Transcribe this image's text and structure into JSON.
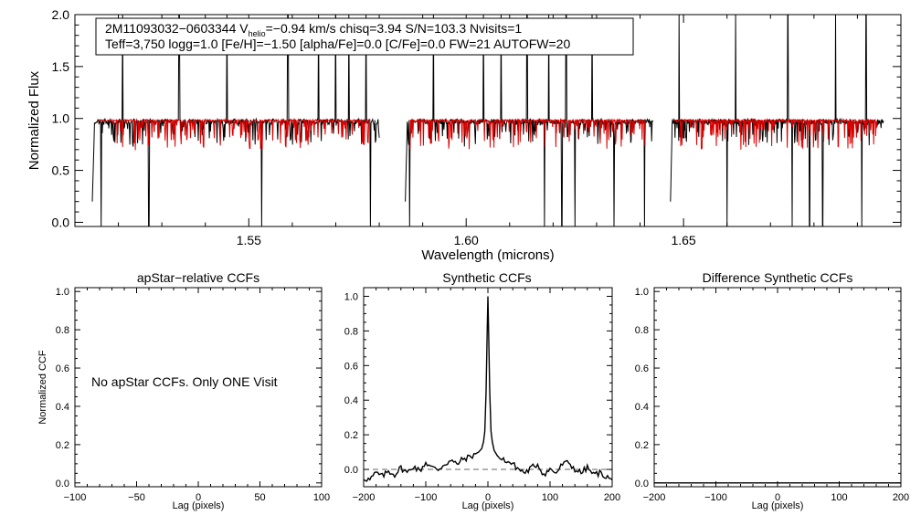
{
  "colors": {
    "observed": "#000000",
    "model": "#dd0000",
    "frame": "#000000",
    "zero_line": "#666666"
  },
  "spectrum_panel": {
    "info_line1_a": "2M11093032−0603344  V",
    "info_line1_sub": "helio",
    "info_line1_b": "=−0.94 km/s  chisq=3.94  S/N=103.3  Nvisits=1",
    "info_line2": "Teff=3,750 logg=1.0 [Fe/H]=−1.50 [alpha/Fe]=0.0 [C/Fe]=0.0 FW=21 AUTOFW=20"
  },
  "ccf_notice": "No apStar CCFs.  Only ONE Visit",
  "chart_data": [
    {
      "type": "line",
      "name": "spectrum",
      "xlabel": "Wavelength (microns)",
      "ylabel": "Normalized Flux",
      "xlim": [
        1.51,
        1.7
      ],
      "ylim": [
        -0.04,
        2.0
      ],
      "x_tick_values": [
        1.55,
        1.6,
        1.65
      ],
      "x_tick_labels": [
        "1.55",
        "1.60",
        "1.65"
      ],
      "y_tick_values": [
        0.0,
        0.5,
        1.0,
        1.5,
        2.0
      ],
      "y_tick_labels": [
        "0.0",
        "0.5",
        "1.0",
        "1.5",
        "2.0"
      ],
      "chips": [
        [
          1.514,
          1.58
        ],
        [
          1.586,
          1.643
        ],
        [
          1.647,
          1.696
        ]
      ],
      "series": [
        {
          "name": "observed spectrum",
          "continuum": 0.97,
          "spikes_up": [
            1.521,
            1.534,
            1.545,
            1.559,
            1.566,
            1.57,
            1.573,
            1.577,
            1.5925,
            1.604,
            1.608,
            1.614,
            1.619,
            1.623,
            1.629,
            1.641,
            1.649,
            1.662,
            1.674,
            1.685,
            1.692
          ],
          "spikes_down": [
            1.516,
            1.527,
            1.553,
            1.578,
            1.587,
            1.618,
            1.622,
            1.625,
            1.634,
            1.641,
            1.66,
            1.675,
            1.679,
            1.682,
            1.691
          ]
        },
        {
          "name": "synthetic model",
          "continuum": 0.98
        }
      ]
    },
    {
      "type": "line",
      "name": "apstar-relative-ccfs",
      "title": "apStar−relative CCFs",
      "xlabel": "Lag (pixels)",
      "ylabel": "Normalized CCF",
      "xlim": [
        -100,
        100
      ],
      "ylim": [
        -0.02,
        1.02
      ],
      "x_tick_values": [
        -100,
        -50,
        0,
        50,
        100
      ],
      "x_tick_labels": [
        "−100",
        "−50",
        "0",
        "50",
        "100"
      ],
      "y_tick_values": [
        0.0,
        0.2,
        0.4,
        0.6,
        0.8,
        1.0
      ],
      "y_tick_labels": [
        "0.0",
        "0.2",
        "0.4",
        "0.6",
        "0.8",
        "1.0"
      ],
      "series": []
    },
    {
      "type": "line",
      "name": "synthetic-ccfs",
      "title": "Synthetic CCFs",
      "xlabel": "Lag (pixels)",
      "xlim": [
        -200,
        200
      ],
      "ylim": [
        -0.1,
        1.05
      ],
      "x_tick_values": [
        -200,
        -100,
        0,
        100,
        200
      ],
      "x_tick_labels": [
        "−200",
        "−100",
        "0",
        "100",
        "200"
      ],
      "y_tick_values": [
        0.0,
        0.2,
        0.4,
        0.6,
        0.8,
        1.0
      ],
      "y_tick_labels": [
        "0.0",
        "0.2",
        "0.4",
        "0.6",
        "0.8",
        "1.0"
      ],
      "zero_line": 0.0,
      "series": [
        {
          "name": "synthetic CCF",
          "peak_lag": 0,
          "peak_value": 1.0,
          "x": [
            -200,
            -190,
            -180,
            -170,
            -160,
            -150,
            -140,
            -130,
            -120,
            -110,
            -100,
            -90,
            -80,
            -70,
            -60,
            -50,
            -40,
            -30,
            -20,
            -15,
            -10,
            -7,
            -5,
            -3,
            -1,
            0,
            1,
            3,
            5,
            7,
            10,
            15,
            20,
            30,
            40,
            50,
            60,
            70,
            80,
            90,
            100,
            110,
            120,
            130,
            140,
            150,
            160,
            170,
            180,
            190,
            200
          ],
          "y": [
            -0.05,
            -0.06,
            -0.02,
            -0.04,
            -0.01,
            -0.03,
            0.01,
            -0.02,
            0.02,
            -0.01,
            0.04,
            0.01,
            0.0,
            0.03,
            0.05,
            0.03,
            0.06,
            0.07,
            0.09,
            0.1,
            0.12,
            0.16,
            0.22,
            0.45,
            0.82,
            1.0,
            0.82,
            0.45,
            0.22,
            0.16,
            0.11,
            0.08,
            0.06,
            0.05,
            0.03,
            0.0,
            -0.02,
            0.01,
            0.03,
            -0.03,
            0.0,
            -0.02,
            0.03,
            0.04,
            0.0,
            -0.02,
            0.01,
            -0.03,
            -0.02,
            -0.04,
            -0.06
          ]
        }
      ]
    },
    {
      "type": "line",
      "name": "difference-synthetic-ccfs",
      "title": "Difference Synthetic CCFs",
      "xlabel": "Lag (pixels)",
      "xlim": [
        -200,
        200
      ],
      "ylim": [
        -0.02,
        1.02
      ],
      "x_tick_values": [
        -200,
        -100,
        0,
        100,
        200
      ],
      "x_tick_labels": [
        "−200",
        "−100",
        "0",
        "100",
        "200"
      ],
      "y_tick_values": [
        0.0,
        0.2,
        0.4,
        0.6,
        0.8,
        1.0
      ],
      "y_tick_labels": [
        "0.0",
        "0.2",
        "0.4",
        "0.6",
        "0.8",
        "1.0"
      ],
      "series": [
        {
          "name": "difference CCF",
          "x": [
            -200,
            200
          ],
          "y": [
            0.0,
            0.0
          ]
        }
      ]
    }
  ]
}
